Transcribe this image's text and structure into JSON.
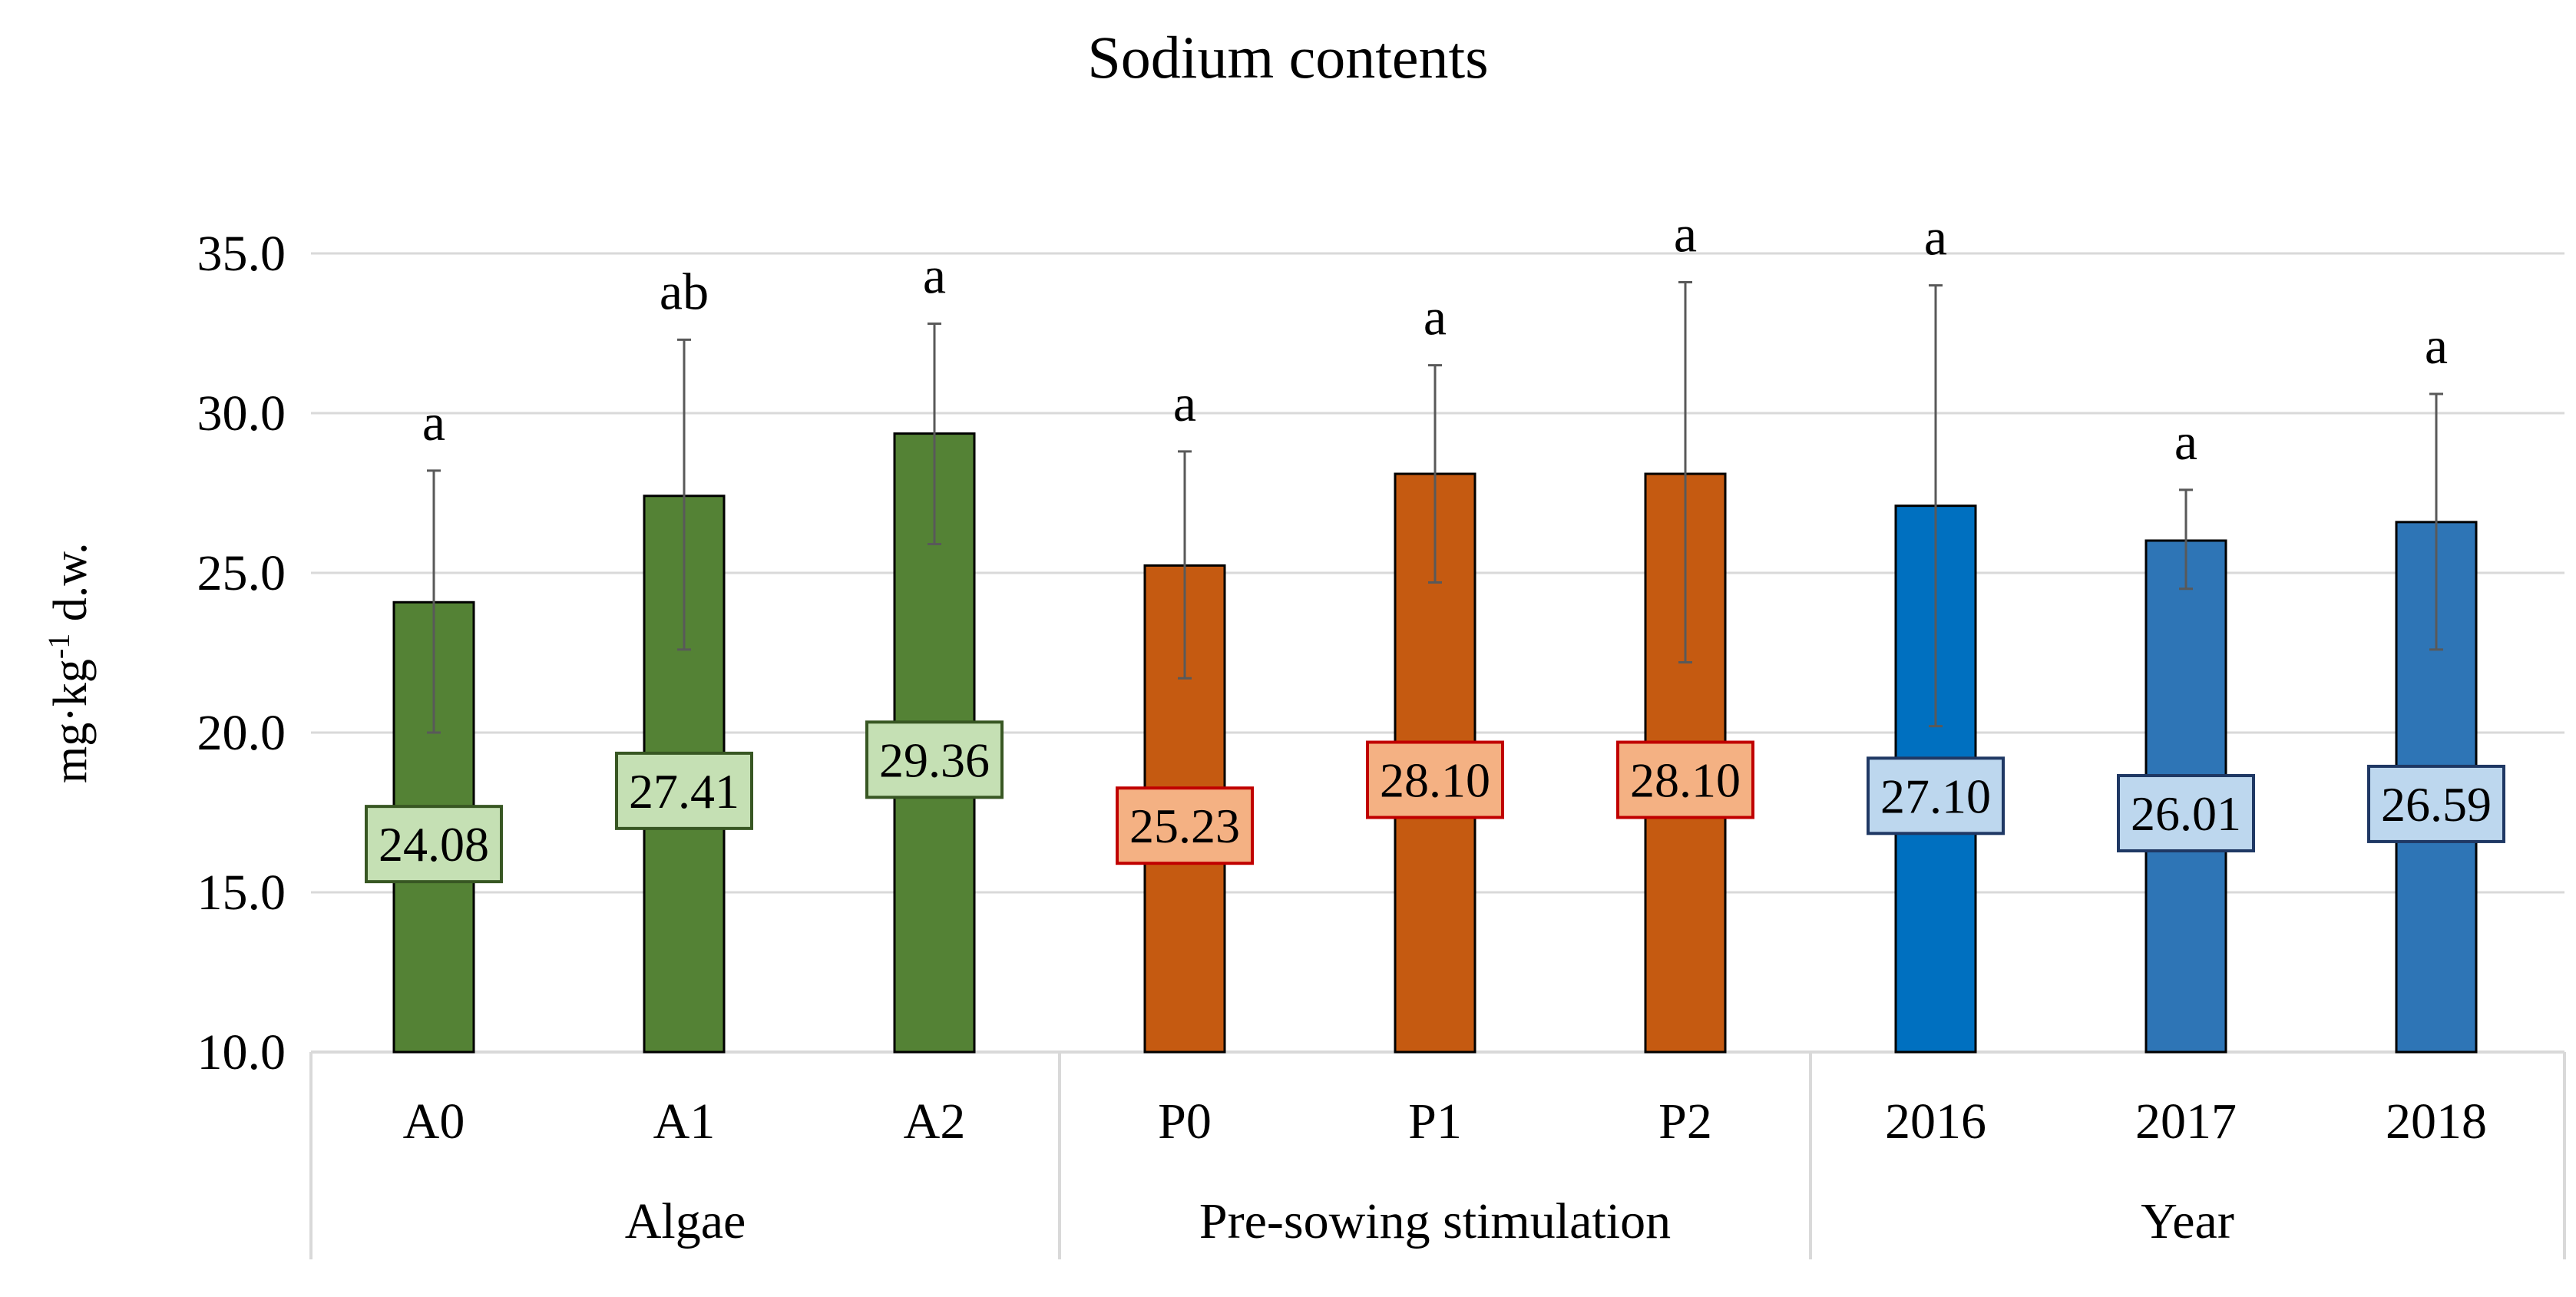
{
  "chart_data": {
    "type": "bar",
    "title": "Sodium contents",
    "ylabel": "mg·kg",
    "ylabel_sup": "-1",
    "ylabel_suffix": " d.w.",
    "ylim": [
      10.0,
      35.0
    ],
    "yticks": [
      "10.0",
      "15.0",
      "20.0",
      "25.0",
      "30.0",
      "35.0"
    ],
    "grid": true,
    "groups": [
      {
        "name": "Algae",
        "bar_color": "#548235",
        "label_fill": "#c5e0b4",
        "label_border": "#385723",
        "bars": [
          {
            "category": "A0",
            "value": 24.08,
            "label": "24.08",
            "err_low": 20.0,
            "err_high": 28.2,
            "letter": "a"
          },
          {
            "category": "A1",
            "value": 27.41,
            "label": "27.41",
            "err_low": 22.6,
            "err_high": 32.3,
            "letter": "ab"
          },
          {
            "category": "A2",
            "value": 29.36,
            "label": "29.36",
            "err_low": 25.9,
            "err_high": 32.8,
            "letter": "a"
          }
        ]
      },
      {
        "name": "Pre-sowing stimulation",
        "bar_color": "#c55a11",
        "label_fill": "#f4b183",
        "label_border": "#c00000",
        "bars": [
          {
            "category": "P0",
            "value": 25.23,
            "label": "25.23",
            "err_low": 21.7,
            "err_high": 28.8,
            "letter": "a"
          },
          {
            "category": "P1",
            "value": 28.1,
            "label": "28.10",
            "err_low": 24.7,
            "err_high": 31.5,
            "letter": "a"
          },
          {
            "category": "P2",
            "value": 28.1,
            "label": "28.10",
            "err_low": 22.2,
            "err_high": 34.1,
            "letter": "a"
          }
        ]
      },
      {
        "name": "Year",
        "bar_color": "#2e75b6",
        "label_fill": "#bdd7ee",
        "label_border": "#1f3864",
        "bars": [
          {
            "category": "2016",
            "value": 27.1,
            "label": "27.10",
            "err_low": 20.2,
            "err_high": 34.0,
            "letter": "a",
            "bar_color": "#0070c0"
          },
          {
            "category": "2017",
            "value": 26.01,
            "label": "26.01",
            "err_low": 24.5,
            "err_high": 27.6,
            "letter": "a"
          },
          {
            "category": "2018",
            "value": 26.59,
            "label": "26.59",
            "err_low": 22.6,
            "err_high": 30.6,
            "letter": "a"
          }
        ]
      }
    ]
  }
}
